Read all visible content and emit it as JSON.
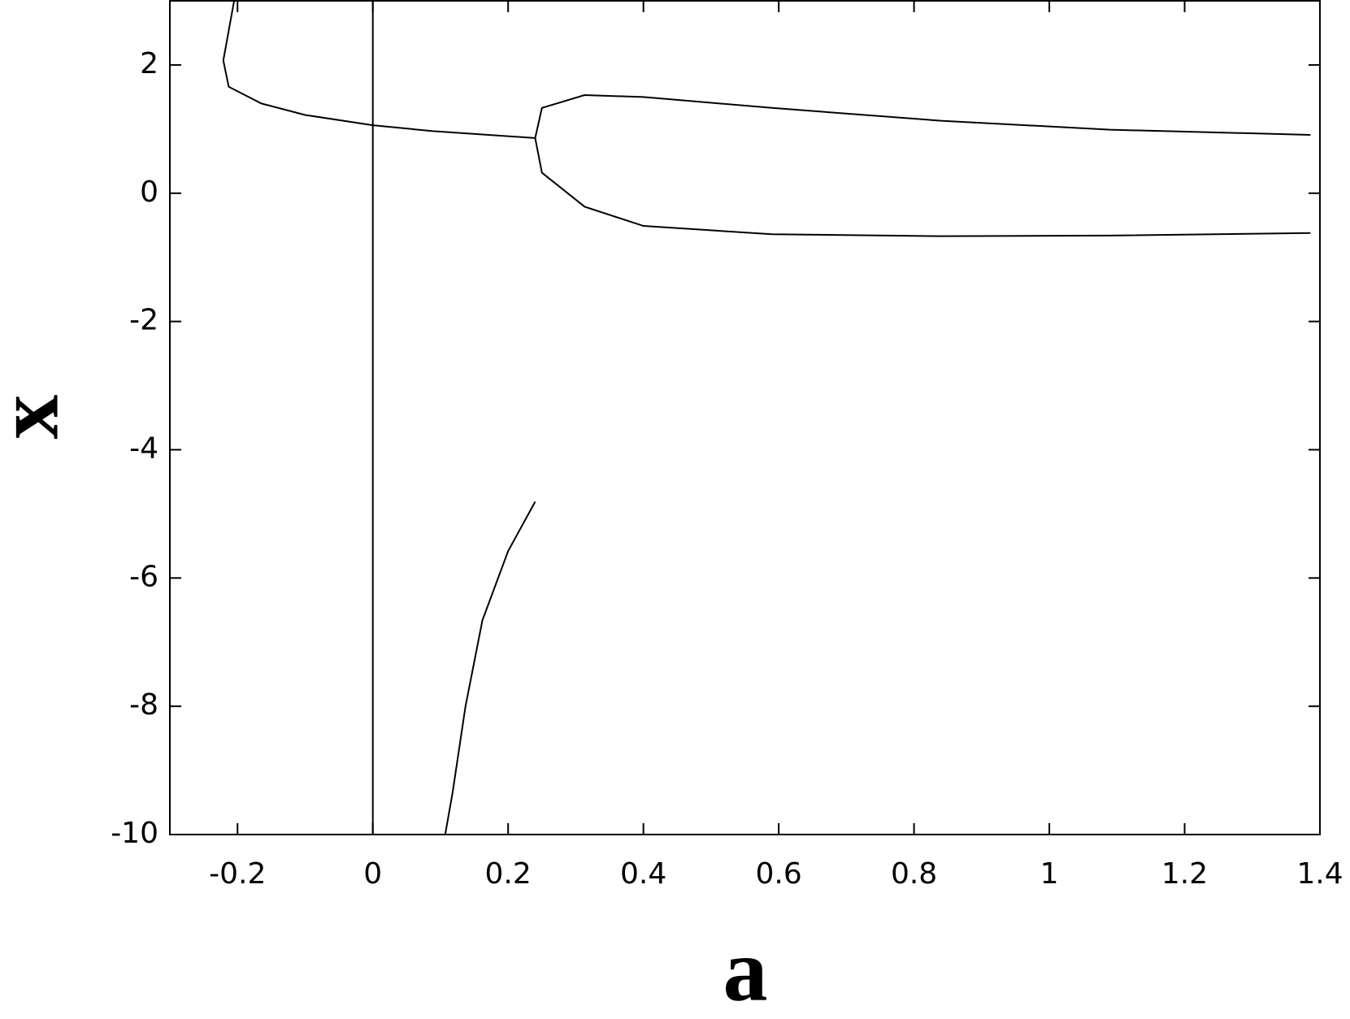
{
  "chart_data": {
    "type": "line",
    "x_label": "a",
    "y_label": "x",
    "xlim": [
      -0.3,
      1.4
    ],
    "ylim": [
      -10,
      3
    ],
    "xticks": [
      -0.2,
      0,
      0.2,
      0.4,
      0.6,
      0.8,
      1,
      1.2,
      1.4
    ],
    "yticks": [
      -10,
      -8,
      -6,
      -4,
      -2,
      0,
      2
    ],
    "series": [
      {
        "color": "#000000",
        "x": [
          -0.205,
          -0.221,
          -0.213,
          -0.165,
          -0.1,
          0,
          0.087,
          0.24
        ],
        "values": [
          3.0,
          2.07,
          1.66,
          1.4,
          1.22,
          1.06,
          0.97,
          0.86
        ]
      },
      {
        "color": "#000000",
        "x": [
          0.24,
          0.25,
          0.313,
          0.4,
          0.59,
          0.84,
          1.09,
          1.386
        ],
        "values": [
          0.86,
          1.33,
          1.53,
          1.5,
          1.33,
          1.13,
          0.99,
          0.91
        ]
      },
      {
        "color": "#000000",
        "x": [
          0.24,
          0.25,
          0.313,
          0.4,
          0.59,
          0.84,
          1.09,
          1.386
        ],
        "values": [
          0.86,
          0.32,
          -0.21,
          -0.51,
          -0.64,
          -0.67,
          -0.66,
          -0.62
        ]
      },
      {
        "color": "#000000",
        "x": [
          0.24,
          0.2,
          0.162,
          0.137,
          0.118,
          0.107
        ],
        "values": [
          -4.81,
          -5.58,
          -6.66,
          -8.0,
          -9.34,
          -10.0
        ]
      },
      {
        "color": "#000000",
        "x": [
          0,
          0
        ],
        "values": [
          -10,
          3
        ]
      }
    ]
  }
}
